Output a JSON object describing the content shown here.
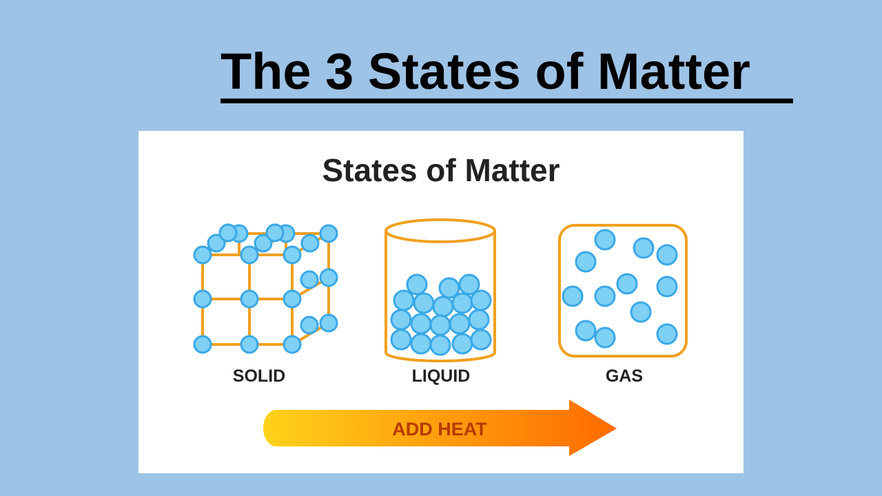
{
  "slide": {
    "title": "The 3 States of Matter"
  },
  "diagram": {
    "heading": "States of Matter",
    "states": [
      {
        "label": "SOLID"
      },
      {
        "label": "LIQUID"
      },
      {
        "label": "GAS"
      }
    ],
    "arrow_label": "ADD HEAT",
    "colors": {
      "background": "#9dc3e6",
      "panel": "#ffffff",
      "container_stroke": "#f0a020",
      "particle_fill": "#7fd0f5",
      "particle_stroke": "#3aa8e6",
      "arrow_start": "#ffd21a",
      "arrow_end": "#ff6a00",
      "arrow_text": "#b83a00"
    }
  }
}
